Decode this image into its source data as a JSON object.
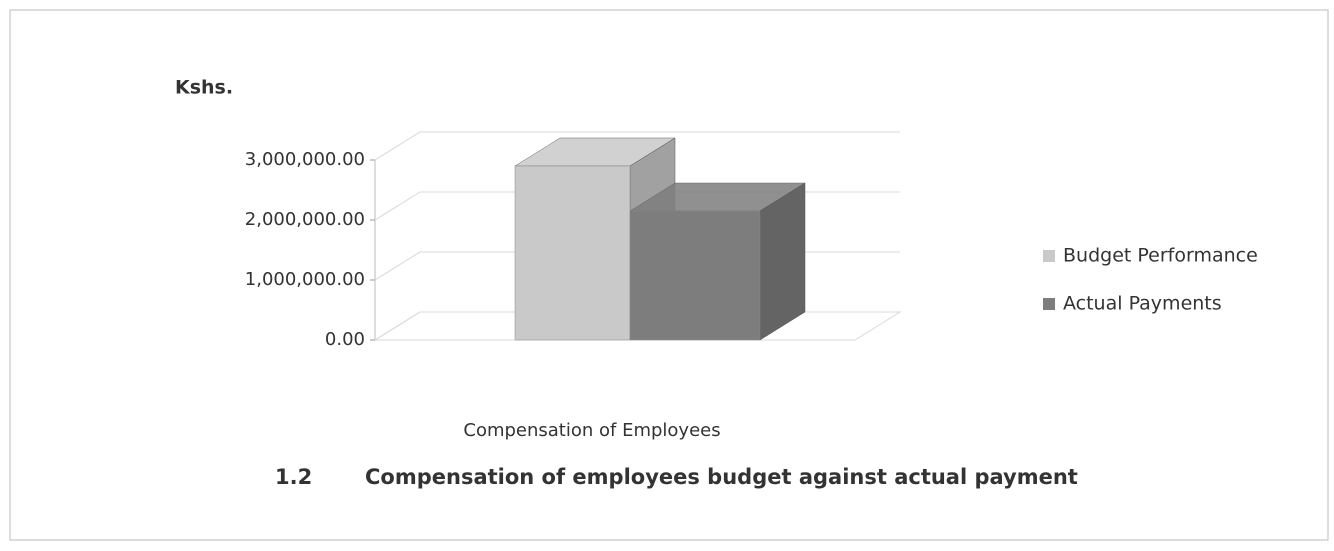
{
  "chart_data": {
    "type": "bar3d",
    "figure_number": "1.2",
    "title": "Compensation of employees budget against actual payment",
    "y_label": "Kshs.",
    "categories": [
      "Compensation of Employees"
    ],
    "series": [
      {
        "name": "Budget Performance",
        "color": "#c9c9c9",
        "values": [
          2900000
        ]
      },
      {
        "name": "Actual Payments",
        "color": "#7d7d7d",
        "values": [
          2150000
        ]
      }
    ],
    "ylim": [
      0,
      3000000
    ],
    "yticks": [
      {
        "value": 0,
        "label": "0.00"
      },
      {
        "value": 1000000,
        "label": "1,000,000.00"
      },
      {
        "value": 2000000,
        "label": "2,000,000.00"
      },
      {
        "value": 3000000,
        "label": "3,000,000.00"
      }
    ],
    "grid": true,
    "legend": "right"
  }
}
